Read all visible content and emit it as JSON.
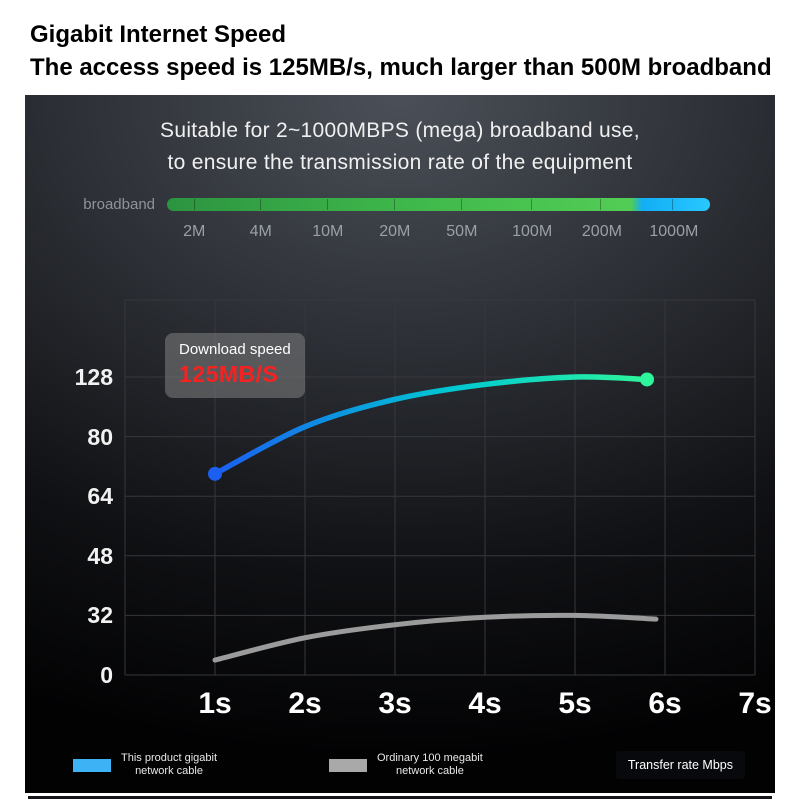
{
  "header": {
    "title": "Gigabit Internet Speed",
    "subtitle": "The access speed is 125MB/s, much larger than 500M broadband"
  },
  "panel": {
    "title_line1": "Suitable for 2~1000MBPS (mega) broadband use,",
    "title_line2": "to ensure the transmission rate of the equipment",
    "broadband": {
      "label": "broadband",
      "scale_labels": [
        "2M",
        "4M",
        "10M",
        "20M",
        "50M",
        "100M",
        "200M",
        "1000M"
      ],
      "bar_green": "#3fb84b",
      "bar_blue": "#29c8ff"
    },
    "tooltip": {
      "line1": "Download speed",
      "line2": "125MB/S",
      "value_color": "#f52222"
    },
    "legend": [
      {
        "swatch": "#3db3f5",
        "line1": "This product gigabit",
        "line2": "network cable"
      },
      {
        "swatch": "#a9a9a9",
        "line1": "Ordinary 100 megabit",
        "line2": "network cable"
      }
    ],
    "transfer_label": "Transfer rate Mbps"
  },
  "chart_data": {
    "type": "line",
    "title": "Download speed over time",
    "x_ticks": [
      "1s",
      "2s",
      "3s",
      "4s",
      "5s",
      "6s",
      "7s"
    ],
    "y_ticks": [
      128,
      80,
      64,
      48,
      32,
      0
    ],
    "ylabel": "Transfer rate Mbps",
    "grid": true,
    "series": [
      {
        "name": "This product gigabit network cable",
        "color_start": "#1b5ef0",
        "color_mid": "#00c9d2",
        "color_end": "#2df59b",
        "points": [
          [
            1,
            70
          ],
          [
            2,
            88
          ],
          [
            3,
            110
          ],
          [
            4,
            122
          ],
          [
            5,
            128
          ],
          [
            5.8,
            126
          ]
        ]
      },
      {
        "name": "Ordinary 100 megabit network cable",
        "color": "#9b9b9b",
        "points": [
          [
            1,
            8
          ],
          [
            2,
            20
          ],
          [
            3,
            27
          ],
          [
            4,
            31
          ],
          [
            5,
            32
          ],
          [
            5.9,
            30
          ]
        ]
      }
    ],
    "annotation": "Download speed 125MB/S"
  }
}
